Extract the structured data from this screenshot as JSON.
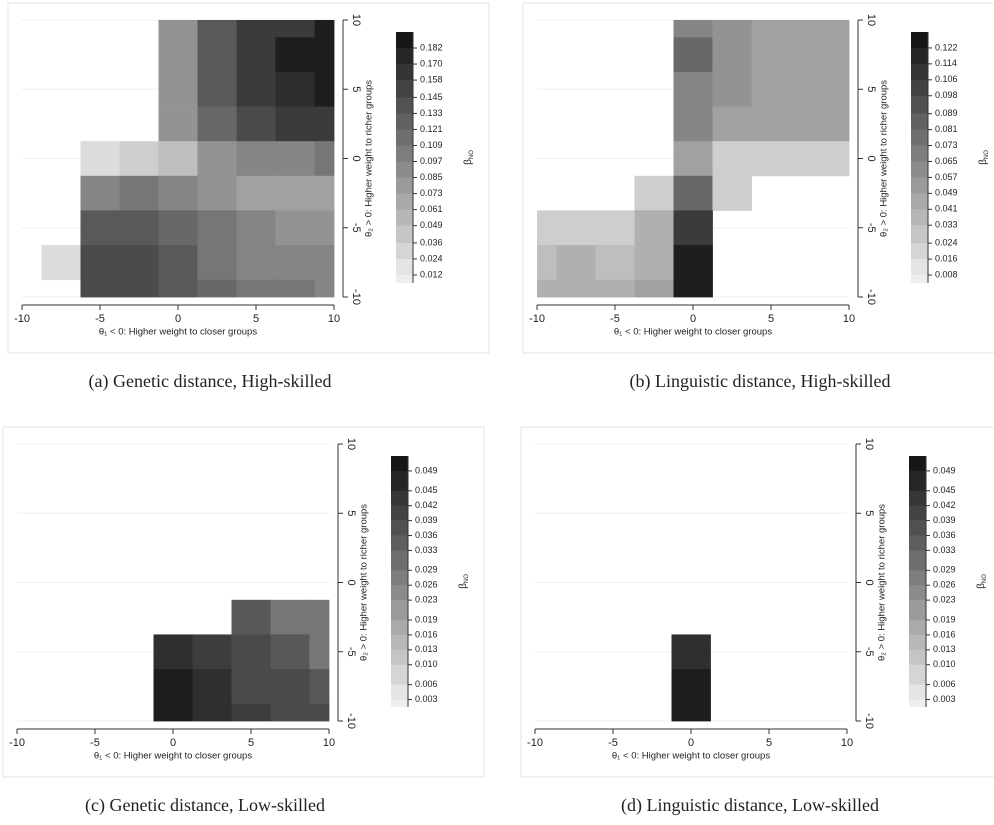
{
  "chart_data": [
    {
      "type": "heatmap",
      "caption": "(a) Genetic distance, High-skilled",
      "xlabel": "θ₁ < 0: Higher weight to closer groups",
      "ylabel": "θ₂ > 0: Higher weight to richer groups",
      "colorbar_label": "β",
      "colorbar_label_sub": "NO",
      "x": [
        -10,
        -7.5,
        -5,
        -2.5,
        0,
        2.5,
        5,
        7.5,
        10
      ],
      "y": [
        10,
        7.5,
        5,
        2.5,
        0,
        -2.5,
        -5,
        -7.5,
        -10
      ],
      "z": [
        [
          null,
          null,
          null,
          null,
          0.085,
          0.133,
          0.158,
          0.158,
          0.182
        ],
        [
          null,
          null,
          null,
          null,
          0.085,
          0.133,
          0.158,
          0.182,
          0.182
        ],
        [
          null,
          null,
          null,
          null,
          0.085,
          0.133,
          0.158,
          0.17,
          0.182
        ],
        [
          null,
          null,
          null,
          null,
          0.085,
          0.121,
          0.145,
          0.158,
          0.158
        ],
        [
          null,
          null,
          0.024,
          0.036,
          0.049,
          0.085,
          0.097,
          0.097,
          0.109
        ],
        [
          null,
          null,
          0.097,
          0.109,
          0.097,
          0.085,
          0.073,
          0.073,
          0.073
        ],
        [
          null,
          null,
          0.133,
          0.133,
          0.121,
          0.109,
          0.097,
          0.085,
          0.085
        ],
        [
          null,
          0.024,
          0.145,
          0.145,
          0.133,
          0.109,
          0.097,
          0.097,
          0.097
        ],
        [
          null,
          null,
          0.145,
          0.145,
          0.133,
          0.121,
          0.109,
          0.109,
          0.097
        ]
      ],
      "xlim": [
        -10,
        10
      ],
      "ylim": [
        -10,
        10
      ],
      "xticks": [
        -10,
        -5,
        0,
        5,
        10
      ],
      "yticks": [
        -10,
        -5,
        0,
        5,
        10
      ],
      "clim": [
        0.006,
        0.194
      ],
      "cticks": [
        0.182,
        {
          "value": 0.17,
          "label": "0.170"
        },
        0.158,
        0.145,
        0.133,
        0.121,
        0.109,
        0.097,
        0.085,
        0.073,
        0.061,
        0.049,
        0.036,
        0.024,
        0.012
      ],
      "grid": true
    },
    {
      "type": "heatmap",
      "caption": "(b) Linguistic distance, High-skilled",
      "xlabel": "θ₁ < 0: Higher weight to closer groups",
      "ylabel": "θ₂ > 0: Higher weight to richer groups",
      "colorbar_label": "β",
      "colorbar_label_sub": "NO",
      "x": [
        -10,
        -7.5,
        -5,
        -2.5,
        0,
        2.5,
        5,
        7.5,
        10
      ],
      "y": [
        10,
        7.5,
        5,
        2.5,
        0,
        -2.5,
        -5,
        -7.5,
        -10
      ],
      "z": [
        [
          null,
          null,
          null,
          null,
          0.065,
          0.057,
          0.049,
          0.049,
          0.049
        ],
        [
          null,
          null,
          null,
          null,
          0.081,
          0.057,
          0.049,
          0.049,
          0.049
        ],
        [
          null,
          null,
          null,
          null,
          0.065,
          0.057,
          0.049,
          0.049,
          0.049
        ],
        [
          null,
          null,
          null,
          null,
          0.065,
          0.049,
          0.049,
          0.049,
          0.049
        ],
        [
          null,
          null,
          null,
          null,
          0.049,
          0.024,
          0.024,
          0.024,
          0.024
        ],
        [
          null,
          null,
          null,
          0.024,
          0.081,
          0.024,
          null,
          null,
          null
        ],
        [
          0.024,
          0.024,
          0.024,
          0.041,
          0.106,
          null,
          null,
          null,
          null
        ],
        [
          0.033,
          0.041,
          0.033,
          0.041,
          0.122,
          null,
          null,
          null,
          null
        ],
        [
          0.041,
          0.041,
          0.041,
          0.049,
          0.122,
          null,
          null,
          null,
          null
        ]
      ],
      "xlim": [
        -10,
        10
      ],
      "ylim": [
        -10,
        10
      ],
      "xticks": [
        -10,
        -5,
        0,
        5,
        10
      ],
      "yticks": [
        -10,
        -5,
        0,
        5,
        10
      ],
      "clim": [
        0.004,
        0.13
      ],
      "cticks": [
        0.122,
        0.114,
        0.106,
        0.098,
        0.089,
        0.081,
        0.073,
        0.065,
        0.057,
        0.049,
        0.041,
        0.033,
        0.024,
        0.016,
        0.008
      ],
      "grid": true
    },
    {
      "type": "heatmap",
      "caption": "(c) Genetic distance, Low-skilled",
      "xlabel": "θ₁ < 0: Higher weight to closer groups",
      "ylabel": "θ₂ > 0: Higher weight to richer groups",
      "colorbar_label": "β",
      "colorbar_label_sub": "NO",
      "x": [
        -10,
        -7.5,
        -5,
        -2.5,
        0,
        2.5,
        5,
        7.5,
        10
      ],
      "y": [
        10,
        7.5,
        5,
        2.5,
        0,
        -2.5,
        -5,
        -7.5,
        -10
      ],
      "z": [
        [
          null,
          null,
          null,
          null,
          null,
          null,
          null,
          null,
          null
        ],
        [
          null,
          null,
          null,
          null,
          null,
          null,
          null,
          null,
          null
        ],
        [
          null,
          null,
          null,
          null,
          null,
          null,
          null,
          null,
          null
        ],
        [
          null,
          null,
          null,
          null,
          null,
          null,
          null,
          null,
          null
        ],
        [
          null,
          null,
          null,
          null,
          null,
          null,
          null,
          null,
          null
        ],
        [
          null,
          null,
          null,
          null,
          null,
          null,
          0.036,
          0.029,
          0.029
        ],
        [
          null,
          null,
          null,
          null,
          0.045,
          0.042,
          0.039,
          0.036,
          0.029
        ],
        [
          null,
          null,
          null,
          null,
          0.049,
          0.045,
          0.039,
          0.039,
          0.036
        ],
        [
          null,
          null,
          null,
          null,
          0.049,
          0.045,
          0.042,
          0.039,
          0.039
        ]
      ],
      "xlim": [
        -10,
        10
      ],
      "ylim": [
        -10,
        10
      ],
      "xticks": [
        -10,
        -5,
        0,
        5,
        10
      ],
      "yticks": [
        -10,
        -5,
        0,
        5,
        10
      ],
      "clim": [
        0.0015,
        0.052
      ],
      "cticks": [
        0.049,
        0.045,
        0.042,
        0.039,
        0.036,
        0.033,
        0.029,
        0.026,
        0.023,
        0.019,
        0.016,
        0.013,
        {
          "value": 0.01,
          "label": "0.010"
        },
        0.006,
        0.003
      ],
      "grid": true
    },
    {
      "type": "heatmap",
      "caption": "(d) Linguistic distance, Low-skilled",
      "xlabel": "θ₁ < 0: Higher weight to closer groups",
      "ylabel": "θ₂ > 0: Higher weight to richer groups",
      "colorbar_label": "β",
      "colorbar_label_sub": "NO",
      "x": [
        -10,
        -7.5,
        -5,
        -2.5,
        0,
        2.5,
        5,
        7.5,
        10
      ],
      "y": [
        10,
        7.5,
        5,
        2.5,
        0,
        -2.5,
        -5,
        -7.5,
        -10
      ],
      "z": [
        [
          null,
          null,
          null,
          null,
          null,
          null,
          null,
          null,
          null
        ],
        [
          null,
          null,
          null,
          null,
          null,
          null,
          null,
          null,
          null
        ],
        [
          null,
          null,
          null,
          null,
          null,
          null,
          null,
          null,
          null
        ],
        [
          null,
          null,
          null,
          null,
          null,
          null,
          null,
          null,
          null
        ],
        [
          null,
          null,
          null,
          null,
          null,
          null,
          null,
          null,
          null
        ],
        [
          null,
          null,
          null,
          null,
          null,
          null,
          null,
          null,
          null
        ],
        [
          null,
          null,
          null,
          null,
          0.045,
          null,
          null,
          null,
          null
        ],
        [
          null,
          null,
          null,
          null,
          0.049,
          null,
          null,
          null,
          null
        ],
        [
          null,
          null,
          null,
          null,
          0.049,
          null,
          null,
          null,
          null
        ]
      ],
      "xlim": [
        -10,
        10
      ],
      "ylim": [
        -10,
        10
      ],
      "xticks": [
        -10,
        -5,
        0,
        5,
        10
      ],
      "yticks": [
        -10,
        -5,
        0,
        5,
        10
      ],
      "clim": [
        0.0015,
        0.052
      ],
      "cticks": [
        0.049,
        0.045,
        0.042,
        0.039,
        0.036,
        0.033,
        0.029,
        0.026,
        0.023,
        0.019,
        0.016,
        0.013,
        {
          "value": 0.01,
          "label": "0.010"
        },
        0.006,
        0.003
      ],
      "grid": true
    }
  ]
}
